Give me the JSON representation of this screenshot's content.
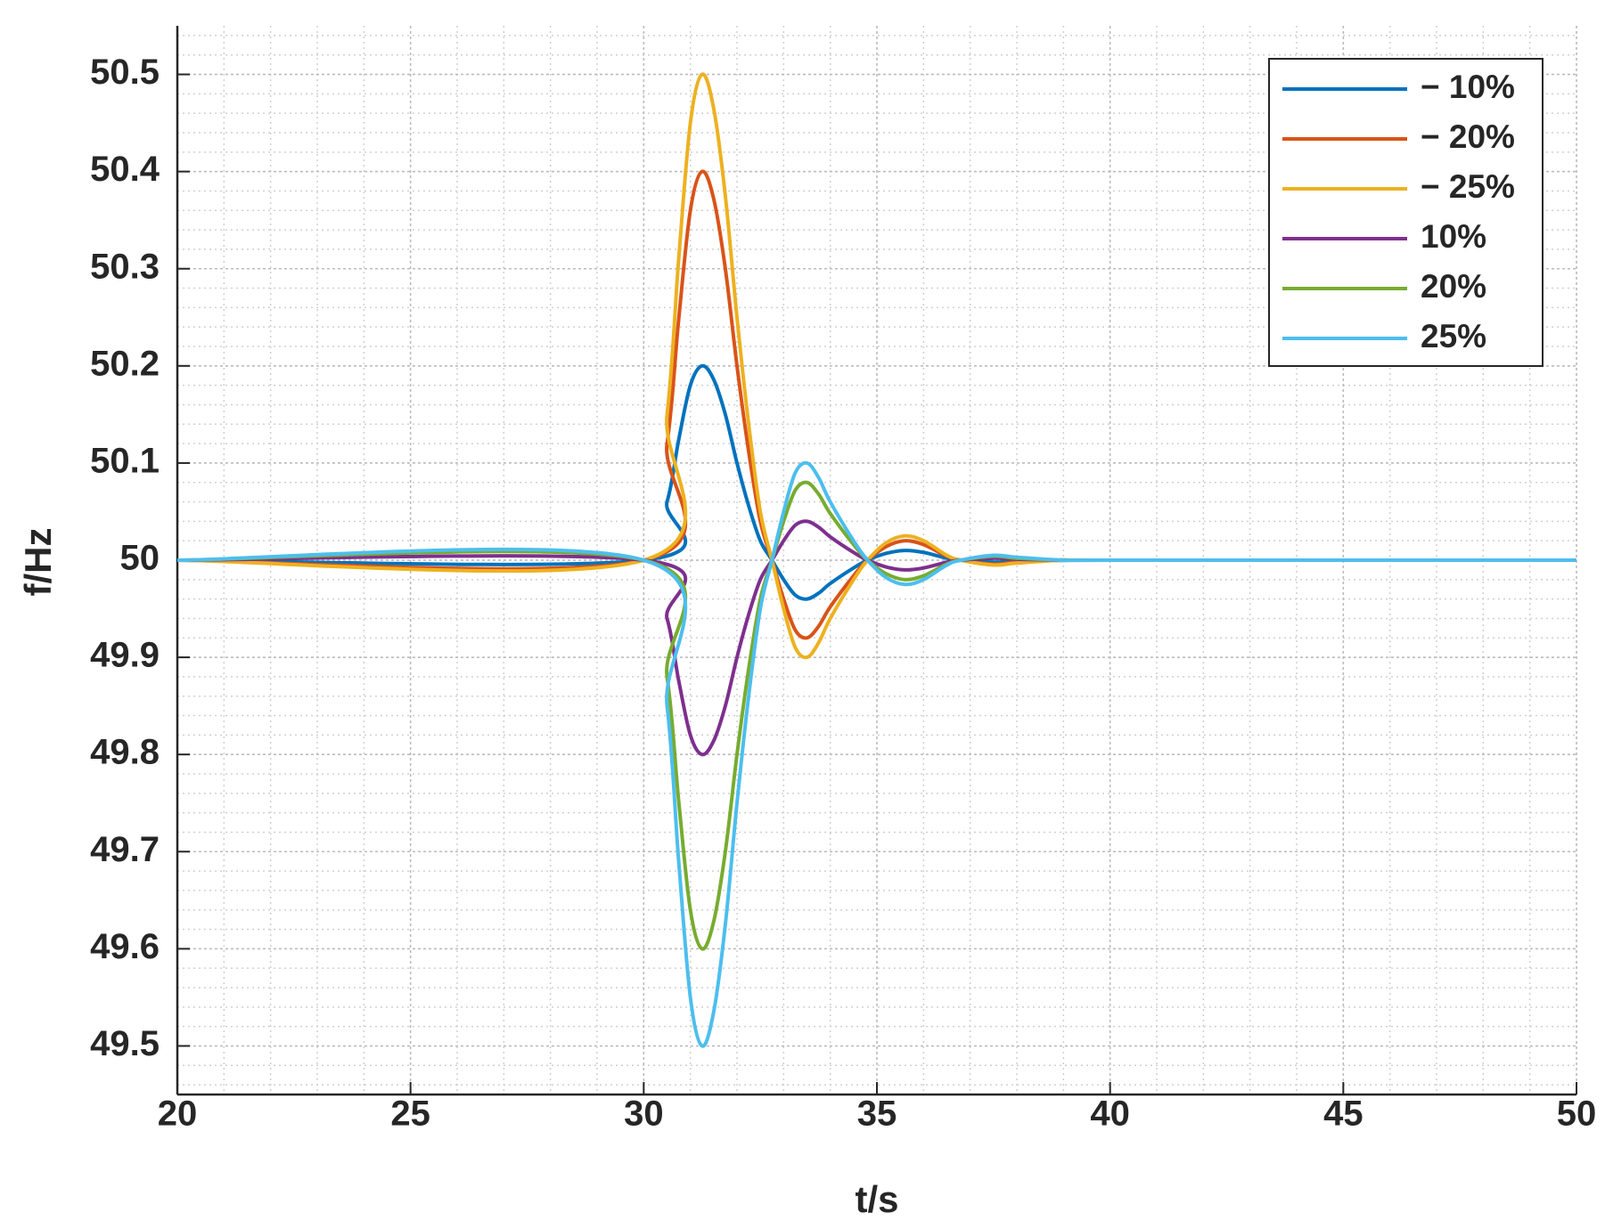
{
  "chart_data": {
    "type": "line",
    "xlabel": "t/s",
    "ylabel": "f/Hz",
    "x": [
      20,
      30,
      30.5,
      30.75,
      31,
      31.25,
      31.5,
      31.75,
      32,
      32.25,
      32.5,
      32.75,
      33,
      33.25,
      33.5,
      33.75,
      34,
      34.5,
      34.8,
      35.2,
      35.6,
      36,
      36.5,
      36.8,
      37.5,
      38,
      39,
      40,
      50
    ],
    "series": [
      {
        "name": "− 10%",
        "color": "#0072BD",
        "values": [
          50,
          50,
          50.06,
          50.124,
          50.18,
          50.2,
          50.186,
          50.15,
          50.1,
          50.056,
          50.02,
          50,
          49.98,
          49.964,
          49.96,
          49.966,
          49.976,
          49.992,
          50,
          50.007,
          50.01,
          50.008,
          50.002,
          50,
          49.998,
          49.999,
          50,
          50,
          50
        ]
      },
      {
        "name": "− 20%",
        "color": "#D95319",
        "values": [
          50,
          50,
          50.12,
          50.248,
          50.36,
          50.4,
          50.372,
          50.3,
          50.2,
          50.112,
          50.04,
          50,
          49.96,
          49.928,
          49.92,
          49.932,
          49.952,
          49.984,
          50,
          50.014,
          50.02,
          50.016,
          50.004,
          50,
          49.996,
          49.998,
          50,
          50,
          50
        ]
      },
      {
        "name": "− 25%",
        "color": "#EDB120",
        "values": [
          50,
          50,
          50.15,
          50.31,
          50.45,
          50.5,
          50.465,
          50.375,
          50.25,
          50.14,
          50.05,
          50,
          49.95,
          49.91,
          49.9,
          49.915,
          49.94,
          49.98,
          50,
          50.018,
          50.025,
          50.02,
          50.005,
          50,
          49.995,
          49.997,
          50,
          50,
          50
        ]
      },
      {
        "name": "10%",
        "color": "#7E2F8E",
        "values": [
          50,
          50,
          49.94,
          49.876,
          49.82,
          49.8,
          49.814,
          49.85,
          49.9,
          49.944,
          49.98,
          50,
          50.02,
          50.036,
          50.04,
          50.034,
          50.024,
          50.008,
          50,
          49.993,
          49.99,
          49.992,
          49.998,
          50,
          50.002,
          50.001,
          50,
          50,
          50
        ]
      },
      {
        "name": "20%",
        "color": "#77AC30",
        "values": [
          50,
          50,
          49.88,
          49.752,
          49.64,
          49.6,
          49.628,
          49.7,
          49.8,
          49.888,
          49.96,
          50,
          50.04,
          50.072,
          50.08,
          50.068,
          50.048,
          50.016,
          50,
          49.986,
          49.98,
          49.984,
          49.996,
          50,
          50.004,
          50.002,
          50,
          50,
          50
        ]
      },
      {
        "name": "25%",
        "color": "#4DBEEE",
        "values": [
          50,
          50,
          49.85,
          49.69,
          49.55,
          49.5,
          49.535,
          49.625,
          49.75,
          49.86,
          49.95,
          50,
          50.05,
          50.09,
          50.1,
          50.085,
          50.06,
          50.02,
          50,
          49.982,
          49.975,
          49.98,
          49.995,
          50,
          50.005,
          50.003,
          50,
          50,
          50
        ]
      }
    ],
    "xlim": [
      20,
      50
    ],
    "xticks": [
      20,
      25,
      30,
      35,
      40,
      45,
      50
    ],
    "ylim": [
      49.45,
      50.55
    ],
    "yticks": [
      49.5,
      49.6,
      49.7,
      49.8,
      49.9,
      50,
      50.1,
      50.2,
      50.3,
      50.4,
      50.5
    ],
    "grid": true,
    "minor_grid": true,
    "legend": "upper right"
  }
}
